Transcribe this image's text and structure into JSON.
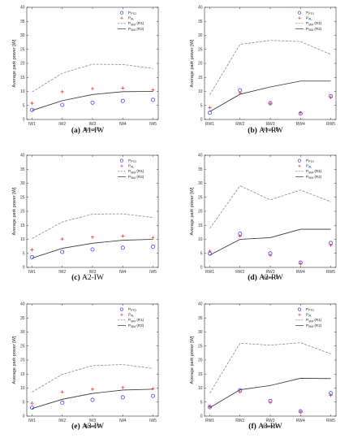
{
  "page": {
    "background": "#ffffff"
  },
  "colors": {
    "p_pto": "#2a2aff",
    "p_al": "#e8262e",
    "p_sim_r1": "#808080",
    "p_sim_r2": "#333333",
    "axis": "#000000",
    "grid": "#d9d9d9"
  },
  "legend": {
    "p_pto": {
      "main": "P",
      "sub": "PTO"
    },
    "p_al": {
      "main": "P",
      "sub": "AL"
    },
    "p_sim_r1": {
      "main": "P",
      "sub": "SIM",
      "suffix": "(R1)"
    },
    "p_sim_r2": {
      "main": "P",
      "sub": "SIM",
      "suffix": "(R2)"
    }
  },
  "chart_data": [
    {
      "type": "line",
      "panel": "a",
      "caption_letter": "(a)",
      "caption_text": "A1-IW",
      "xlabel": "Wave ID",
      "ylabel": "Average park power [W]",
      "ylim": [
        0,
        40
      ],
      "yticks": [
        0,
        5,
        10,
        15,
        20,
        25,
        30,
        35,
        40
      ],
      "categories": [
        "IW1",
        "IW2",
        "IW3",
        "IW4",
        "IW5"
      ],
      "show_xlabel": true,
      "legend": "top-right",
      "grid": false,
      "series": [
        {
          "key": "p_pto",
          "name": "P PTO",
          "style": "circle",
          "values": [
            3.4,
            5.2,
            6.0,
            6.6,
            7.0
          ]
        },
        {
          "key": "p_al",
          "name": "P AL",
          "style": "plus",
          "values": [
            5.8,
            9.9,
            11.0,
            11.2,
            10.5
          ]
        },
        {
          "key": "p_sim_r1",
          "name": "P SIM (R1)",
          "style": "dashed",
          "values": [
            9.8,
            16.5,
            19.7,
            19.6,
            18.2
          ]
        },
        {
          "key": "p_sim_r2",
          "name": "P SIM (R2)",
          "style": "solid",
          "values": [
            3.2,
            6.7,
            8.9,
            9.9,
            10.0
          ]
        }
      ]
    },
    {
      "type": "line",
      "panel": "b",
      "caption_letter": "(b)",
      "caption_text": "A1-RW",
      "xlabel": "Wave ID",
      "ylabel": "Average park power [W]",
      "ylim": [
        0,
        40
      ],
      "yticks": [
        0,
        5,
        10,
        15,
        20,
        25,
        30,
        35,
        40
      ],
      "categories": [
        "RW1",
        "RW2",
        "RW3",
        "RW4",
        "RW5"
      ],
      "show_xlabel": true,
      "legend": "top-right",
      "grid": false,
      "series": [
        {
          "key": "p_pto",
          "name": "P PTO",
          "style": "circle",
          "values": [
            2.4,
            10.4,
            5.8,
            2.1,
            8.3
          ]
        },
        {
          "key": "p_al",
          "name": "P AL",
          "style": "plus",
          "values": [
            4.2,
            9.5,
            5.6,
            2.4,
            7.9
          ]
        },
        {
          "key": "p_sim_r1",
          "name": "P SIM (R1)",
          "style": "dashed",
          "values": [
            8.8,
            26.8,
            28.2,
            27.8,
            23.2
          ]
        },
        {
          "key": "p_sim_r2",
          "name": "P SIM (R2)",
          "style": "solid",
          "values": [
            2.8,
            9.0,
            11.6,
            13.7,
            13.7
          ]
        }
      ]
    },
    {
      "type": "line",
      "panel": "c",
      "caption_letter": "(c)",
      "caption_text": "A2-IW",
      "xlabel": "",
      "ylabel": "Average park power [W]",
      "ylim": [
        0,
        40
      ],
      "yticks": [
        0,
        5,
        10,
        15,
        20,
        25,
        30,
        35,
        40
      ],
      "categories": [
        "IW1",
        "IW2",
        "IW3",
        "IW4",
        "IW5"
      ],
      "show_xlabel": false,
      "legend": "top-right",
      "grid": false,
      "series": [
        {
          "key": "p_pto",
          "name": "P PTO",
          "style": "circle",
          "values": [
            3.6,
            5.5,
            6.4,
            7.0,
            7.4
          ]
        },
        {
          "key": "p_al",
          "name": "P AL",
          "style": "plus",
          "values": [
            6.3,
            10.1,
            10.8,
            11.2,
            10.6
          ]
        },
        {
          "key": "p_sim_r1",
          "name": "P SIM (R1)",
          "style": "dashed",
          "values": [
            10.3,
            16.2,
            19.0,
            19.1,
            17.8
          ]
        },
        {
          "key": "p_sim_r2",
          "name": "P SIM (R2)",
          "style": "solid",
          "values": [
            3.3,
            6.8,
            8.6,
            9.7,
            10.0
          ]
        }
      ]
    },
    {
      "type": "line",
      "panel": "d",
      "caption_letter": "(d)",
      "caption_text": "A2-RW",
      "xlabel": "Wave ID",
      "ylabel": "Average park power [W]",
      "ylim": [
        0,
        40
      ],
      "yticks": [
        0,
        5,
        10,
        15,
        20,
        25,
        30,
        35,
        40
      ],
      "categories": [
        "RW1",
        "RW2",
        "RW3",
        "RW4",
        "RW5"
      ],
      "show_xlabel": true,
      "legend": "top-right",
      "grid": false,
      "series": [
        {
          "key": "p_pto",
          "name": "P PTO",
          "style": "circle",
          "values": [
            4.9,
            12.0,
            5.0,
            1.7,
            8.7
          ]
        },
        {
          "key": "p_al",
          "name": "P AL",
          "style": "plus",
          "values": [
            5.8,
            11.2,
            4.3,
            1.4,
            7.9
          ]
        },
        {
          "key": "p_sim_r1",
          "name": "P SIM (R1)",
          "style": "dashed",
          "values": [
            13.9,
            29.1,
            24.1,
            27.6,
            23.4
          ]
        },
        {
          "key": "p_sim_r2",
          "name": "P SIM (R2)",
          "style": "solid",
          "values": [
            4.4,
            10.0,
            10.6,
            13.6,
            13.6
          ]
        }
      ]
    },
    {
      "type": "line",
      "panel": "e",
      "caption_letter": "(e)",
      "caption_text": "A3-IW",
      "xlabel": "Wave ID",
      "ylabel": "Average park power [W]",
      "ylim": [
        0,
        40
      ],
      "yticks": [
        0,
        5,
        10,
        15,
        20,
        25,
        30,
        35,
        40
      ],
      "categories": [
        "IW1",
        "IW2",
        "IW3",
        "IW4",
        "IW5"
      ],
      "show_xlabel": true,
      "legend": "top-right",
      "grid": false,
      "series": [
        {
          "key": "p_pto",
          "name": "P PTO",
          "style": "circle",
          "values": [
            3.0,
            4.8,
            5.8,
            6.7,
            7.2
          ]
        },
        {
          "key": "p_al",
          "name": "P AL",
          "style": "plus",
          "values": [
            4.6,
            8.6,
            9.6,
            10.2,
            9.8
          ]
        },
        {
          "key": "p_sim_r1",
          "name": "P SIM (R1)",
          "style": "dashed",
          "values": [
            8.6,
            14.9,
            18.0,
            18.4,
            17.0
          ]
        },
        {
          "key": "p_sim_r2",
          "name": "P SIM (R2)",
          "style": "solid",
          "values": [
            2.7,
            6.0,
            8.1,
            9.3,
            9.6
          ]
        }
      ]
    },
    {
      "type": "line",
      "panel": "f",
      "caption_letter": "(f)",
      "caption_text": "A3-RW",
      "xlabel": "Wave ID",
      "ylabel": "Average park power [W]",
      "ylim": [
        0,
        40
      ],
      "yticks": [
        0,
        5,
        10,
        15,
        20,
        25,
        30,
        35,
        40
      ],
      "categories": [
        "RW1",
        "RW2",
        "RW3",
        "RW4",
        "RW5"
      ],
      "show_xlabel": true,
      "legend": "top-right",
      "grid": false,
      "series": [
        {
          "key": "p_pto",
          "name": "P PTO",
          "style": "circle",
          "values": [
            3.2,
            9.2,
            5.4,
            1.7,
            8.2
          ]
        },
        {
          "key": "p_al",
          "name": "P AL",
          "style": "plus",
          "values": [
            3.4,
            8.6,
            4.9,
            1.5,
            7.4
          ]
        },
        {
          "key": "p_sim_r1",
          "name": "P SIM (R1)",
          "style": "dashed",
          "values": [
            8.2,
            26.0,
            25.3,
            26.2,
            22.2
          ]
        },
        {
          "key": "p_sim_r2",
          "name": "P SIM (R2)",
          "style": "solid",
          "values": [
            3.0,
            9.4,
            10.9,
            13.5,
            13.4
          ]
        }
      ]
    }
  ]
}
